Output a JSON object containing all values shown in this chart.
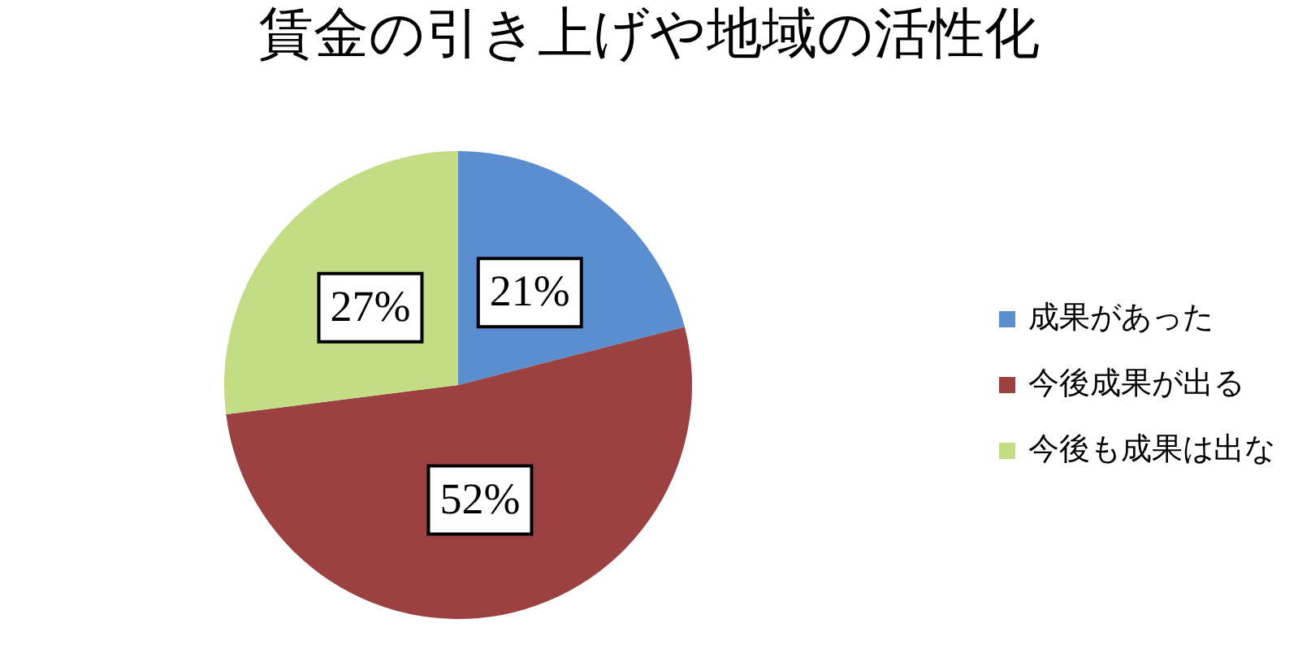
{
  "chart_data": {
    "type": "pie",
    "title": "賃金の引き上げや地域の活性化",
    "categories": [
      "成果があった",
      "今後成果が出る",
      "今後も成果は出な"
    ],
    "values": [
      21,
      52,
      27
    ],
    "value_labels": [
      "21%",
      "52%",
      "27%"
    ],
    "colors": [
      "#5b8ecf",
      "#9c4141",
      "#c3dd84"
    ],
    "legend": "right"
  }
}
